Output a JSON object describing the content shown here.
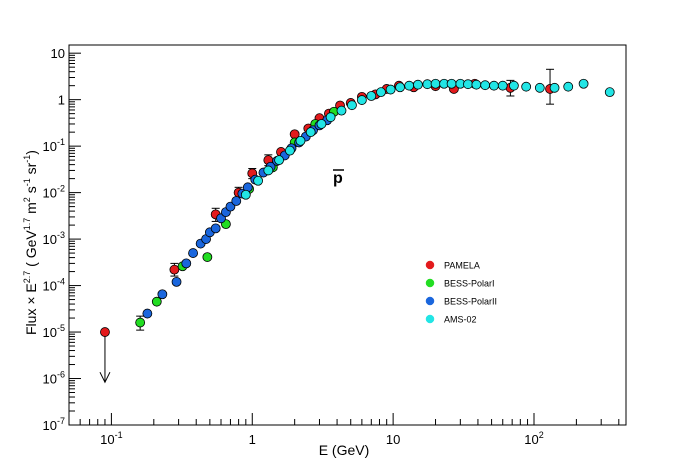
{
  "chart_data": {
    "type": "scatter",
    "title": "",
    "annotation": "p",
    "annotation_overline": true,
    "xlabel": "E (GeV)",
    "ylabel": {
      "prefix": "Flux × E",
      "prefix_exp": "2.7",
      "mid": " ( GeV",
      "mid_exp": "1.7",
      "m": " m",
      "m_exp": "2",
      "s": " s",
      "s_exp": "-1",
      "sr": " sr",
      "sr_exp": "-1",
      "suffix": ")"
    },
    "x_scale": "log",
    "y_scale": "log",
    "xlim": [
      0.05,
      450
    ],
    "ylim": [
      1e-07,
      15
    ],
    "x_ticks": [
      {
        "value": 0.1,
        "base": "10",
        "exp": "-1"
      },
      {
        "value": 1,
        "label": "1"
      },
      {
        "value": 10,
        "label": "10"
      },
      {
        "value": 100,
        "base": "10",
        "exp": "2"
      }
    ],
    "y_ticks": [
      {
        "value": 1e-07,
        "base": "10",
        "exp": "-7"
      },
      {
        "value": 1e-06,
        "base": "10",
        "exp": "-6"
      },
      {
        "value": 1e-05,
        "base": "10",
        "exp": "-5"
      },
      {
        "value": 0.0001,
        "base": "10",
        "exp": "-4"
      },
      {
        "value": 0.001,
        "base": "10",
        "exp": "-3"
      },
      {
        "value": 0.01,
        "base": "10",
        "exp": "-2"
      },
      {
        "value": 0.1,
        "base": "10",
        "exp": "-1"
      },
      {
        "value": 1,
        "label": "1"
      },
      {
        "value": 10,
        "label": "10"
      }
    ],
    "legend": {
      "position": "center-right"
    },
    "series": [
      {
        "name": "PAMELA",
        "color": "#e31a1c",
        "points": [
          {
            "x": 0.09,
            "y": 1e-05,
            "upper_limit": true
          },
          {
            "x": 0.28,
            "y": 0.00022,
            "err": [
              0.00016,
              0.0003
            ]
          },
          {
            "x": 0.55,
            "y": 0.0034,
            "err": [
              0.0024,
              0.0046
            ]
          },
          {
            "x": 0.8,
            "y": 0.01,
            "err": [
              0.008,
              0.013
            ]
          },
          {
            "x": 1.0,
            "y": 0.026,
            "err": [
              0.02,
              0.033
            ]
          },
          {
            "x": 1.3,
            "y": 0.05,
            "err": [
              0.038,
              0.065
            ]
          },
          {
            "x": 1.6,
            "y": 0.075
          },
          {
            "x": 2.0,
            "y": 0.18
          },
          {
            "x": 2.5,
            "y": 0.24
          },
          {
            "x": 3.0,
            "y": 0.4
          },
          {
            "x": 3.5,
            "y": 0.5
          },
          {
            "x": 4.2,
            "y": 0.75
          },
          {
            "x": 5.0,
            "y": 0.85
          },
          {
            "x": 6.0,
            "y": 1.15
          },
          {
            "x": 7.5,
            "y": 1.3
          },
          {
            "x": 9.0,
            "y": 1.7
          },
          {
            "x": 11,
            "y": 2.0
          },
          {
            "x": 14,
            "y": 1.85
          },
          {
            "x": 20,
            "y": 1.95
          },
          {
            "x": 27,
            "y": 1.7
          },
          {
            "x": 38,
            "y": 2.2
          },
          {
            "x": 68,
            "y": 1.8,
            "err": [
              1.2,
              2.6
            ]
          },
          {
            "x": 130,
            "y": 1.7,
            "err": [
              0.8,
              4.5
            ]
          }
        ]
      },
      {
        "name": "BESS-PolarI",
        "color": "#22dd22",
        "points": [
          {
            "x": 0.16,
            "y": 1.6e-05,
            "err": [
              1.1e-05,
              2.2e-05
            ]
          },
          {
            "x": 0.21,
            "y": 4.5e-05
          },
          {
            "x": 0.32,
            "y": 0.00026
          },
          {
            "x": 0.48,
            "y": 0.00041
          },
          {
            "x": 0.65,
            "y": 0.0021
          },
          {
            "x": 0.95,
            "y": 0.012
          },
          {
            "x": 1.4,
            "y": 0.035
          },
          {
            "x": 2.0,
            "y": 0.12
          },
          {
            "x": 2.8,
            "y": 0.3
          },
          {
            "x": 3.8,
            "y": 0.55
          }
        ]
      },
      {
        "name": "BESS-PolarII",
        "color": "#1a66dd",
        "points": [
          {
            "x": 0.18,
            "y": 2.5e-05
          },
          {
            "x": 0.23,
            "y": 6.5e-05
          },
          {
            "x": 0.29,
            "y": 0.00012
          },
          {
            "x": 0.34,
            "y": 0.0003
          },
          {
            "x": 0.38,
            "y": 0.0005
          },
          {
            "x": 0.43,
            "y": 0.0008
          },
          {
            "x": 0.47,
            "y": 0.001
          },
          {
            "x": 0.5,
            "y": 0.0014
          },
          {
            "x": 0.55,
            "y": 0.0017
          },
          {
            "x": 0.6,
            "y": 0.0028
          },
          {
            "x": 0.65,
            "y": 0.0038
          },
          {
            "x": 0.7,
            "y": 0.005
          },
          {
            "x": 0.77,
            "y": 0.0066
          },
          {
            "x": 0.85,
            "y": 0.0095
          },
          {
            "x": 0.93,
            "y": 0.013
          },
          {
            "x": 1.05,
            "y": 0.019
          },
          {
            "x": 1.2,
            "y": 0.027
          },
          {
            "x": 1.35,
            "y": 0.036
          },
          {
            "x": 1.5,
            "y": 0.048
          },
          {
            "x": 1.7,
            "y": 0.063
          },
          {
            "x": 1.9,
            "y": 0.09
          },
          {
            "x": 2.15,
            "y": 0.12
          },
          {
            "x": 2.4,
            "y": 0.16
          },
          {
            "x": 2.7,
            "y": 0.22
          },
          {
            "x": 3.0,
            "y": 0.28
          },
          {
            "x": 3.4,
            "y": 0.36
          }
        ]
      },
      {
        "name": "AMS-02",
        "color": "#22e5e5",
        "points": [
          {
            "x": 0.9,
            "y": 0.009
          },
          {
            "x": 1.1,
            "y": 0.018
          },
          {
            "x": 1.3,
            "y": 0.03
          },
          {
            "x": 1.55,
            "y": 0.05
          },
          {
            "x": 1.85,
            "y": 0.08
          },
          {
            "x": 2.2,
            "y": 0.13
          },
          {
            "x": 2.6,
            "y": 0.2
          },
          {
            "x": 3.1,
            "y": 0.3
          },
          {
            "x": 3.6,
            "y": 0.42
          },
          {
            "x": 4.3,
            "y": 0.58
          },
          {
            "x": 5.1,
            "y": 0.76
          },
          {
            "x": 6.0,
            "y": 0.98
          },
          {
            "x": 7.0,
            "y": 1.2
          },
          {
            "x": 8.2,
            "y": 1.45
          },
          {
            "x": 9.6,
            "y": 1.65
          },
          {
            "x": 11.2,
            "y": 1.85
          },
          {
            "x": 13.0,
            "y": 2.0
          },
          {
            "x": 15.0,
            "y": 2.1
          },
          {
            "x": 17.5,
            "y": 2.15
          },
          {
            "x": 20.0,
            "y": 2.2
          },
          {
            "x": 23.0,
            "y": 2.2
          },
          {
            "x": 26.0,
            "y": 2.2
          },
          {
            "x": 30.0,
            "y": 2.2
          },
          {
            "x": 34.0,
            "y": 2.15
          },
          {
            "x": 39.0,
            "y": 2.1
          },
          {
            "x": 45.0,
            "y": 2.05
          },
          {
            "x": 52.0,
            "y": 2.0
          },
          {
            "x": 60.0,
            "y": 2.0
          },
          {
            "x": 72.0,
            "y": 2.0
          },
          {
            "x": 88.0,
            "y": 1.9
          },
          {
            "x": 110,
            "y": 1.8
          },
          {
            "x": 140,
            "y": 1.8
          },
          {
            "x": 175,
            "y": 1.9
          },
          {
            "x": 225,
            "y": 2.2
          },
          {
            "x": 345,
            "y": 1.45
          }
        ]
      }
    ]
  }
}
